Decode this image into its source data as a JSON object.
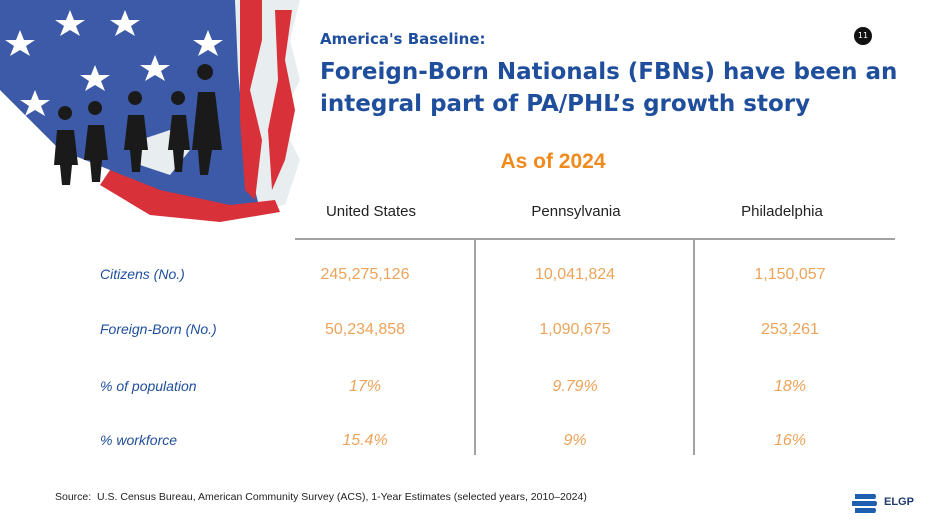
{
  "header": {
    "kicker": "America's Baseline:",
    "title": "Foreign-Born Nationals (FBNs) have been an integral part of PA/PHL’s growth story",
    "page_number": "11"
  },
  "subtitle": "As of 2024",
  "table": {
    "columns": [
      "United States",
      "Pennsylvania",
      "Philadelphia"
    ],
    "rows": [
      {
        "label": "Citizens (No.)",
        "cells": [
          "245,275,126",
          "10,041,824",
          "1,150,057"
        ]
      },
      {
        "label": "Foreign-Born (No.)",
        "cells": [
          "50,234,858",
          "1,090,675",
          "253,261"
        ]
      },
      {
        "label": "% of population",
        "cells": [
          "17%",
          "9.79%",
          "18%"
        ]
      },
      {
        "label": "% workforce",
        "cells": [
          "15.4%",
          "9%",
          "16%"
        ]
      }
    ]
  },
  "footer": {
    "source_label": "Source:",
    "source_text": "U.S. Census Bureau, American Community Survey (ACS), 1-Year Estimates (selected years, 2010–2024)",
    "logo": "ELGP"
  }
}
